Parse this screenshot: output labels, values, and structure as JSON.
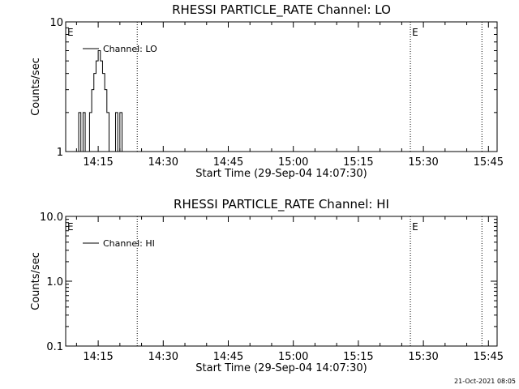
{
  "footer": {
    "timestamp": "21-Oct-2021 08:05"
  },
  "chart_data": [
    {
      "type": "line",
      "title": "RHESSI PARTICLE_RATE Channel: LO",
      "xlabel": "Start Time (29-Sep-04 14:07:30)",
      "ylabel": "Counts/sec",
      "yscale": "log",
      "ylim": [
        1,
        10
      ],
      "xlim": [
        "14:07:30",
        "15:47:00"
      ],
      "x_ticks": [
        "14:15",
        "14:30",
        "14:45",
        "15:00",
        "15:15",
        "15:30",
        "15:45"
      ],
      "y_ticks": [
        "1",
        "10"
      ],
      "legend": "top-left",
      "event_markers": [
        {
          "time": "14:07:30",
          "label": "E",
          "show_line": false
        },
        {
          "time": "14:24:00",
          "label": "",
          "show_line": true
        },
        {
          "time": "15:27:00",
          "label": "E",
          "show_line": true
        },
        {
          "time": "15:43:30",
          "label": "",
          "show_line": true
        }
      ],
      "series": [
        {
          "name": "Channel: LO",
          "x": [
            "14:10:00",
            "14:10:30",
            "14:11:00",
            "14:11:30",
            "14:12:00",
            "14:12:30",
            "14:13:00",
            "14:13:30",
            "14:14:00",
            "14:14:30",
            "14:15:00",
            "14:15:30",
            "14:16:00",
            "14:16:30",
            "14:17:00",
            "14:17:30",
            "14:18:00",
            "14:18:30",
            "14:19:00",
            "14:19:30",
            "14:20:00",
            "14:20:30",
            "14:21:00"
          ],
          "y": [
            1,
            2,
            1,
            2,
            1,
            1,
            2,
            3,
            4,
            5,
            6,
            5,
            4,
            3,
            2,
            1,
            1,
            1,
            2,
            1,
            2,
            1,
            1
          ]
        }
      ]
    },
    {
      "type": "line",
      "title": "RHESSI PARTICLE_RATE Channel: HI",
      "xlabel": "Start Time (29-Sep-04 14:07:30)",
      "ylabel": "Counts/sec",
      "yscale": "log",
      "ylim": [
        0.1,
        10
      ],
      "xlim": [
        "14:07:30",
        "15:47:00"
      ],
      "x_ticks": [
        "14:15",
        "14:30",
        "14:45",
        "15:00",
        "15:15",
        "15:30",
        "15:45"
      ],
      "y_ticks": [
        "0.1",
        "1.0",
        "10.0"
      ],
      "legend": "top-left",
      "event_markers": [
        {
          "time": "14:07:30",
          "label": "E",
          "show_line": false
        },
        {
          "time": "14:24:00",
          "label": "",
          "show_line": true
        },
        {
          "time": "15:27:00",
          "label": "E",
          "show_line": true
        },
        {
          "time": "15:43:30",
          "label": "",
          "show_line": true
        }
      ],
      "series": [
        {
          "name": "Channel: HI",
          "x": [],
          "y": []
        }
      ]
    }
  ]
}
